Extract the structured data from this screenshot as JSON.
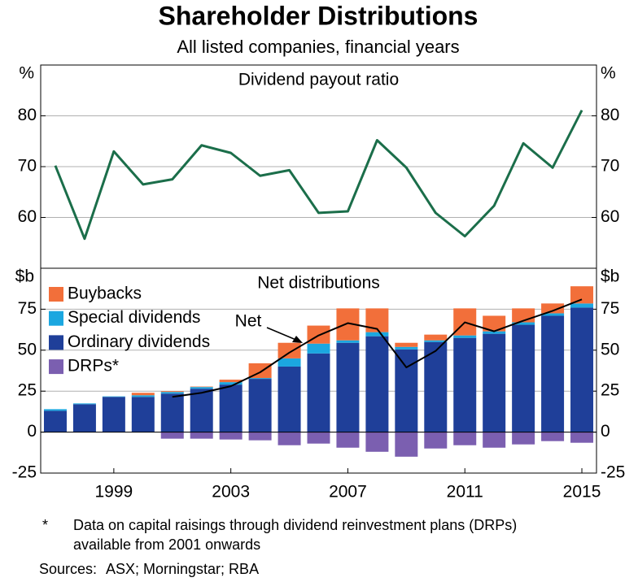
{
  "title": "Shareholder Distributions",
  "subtitle": "All listed companies, financial years",
  "chart_data": [
    {
      "type": "line",
      "title": "Dividend payout ratio",
      "ylabel": "%",
      "x": [
        1997,
        1998,
        1999,
        2000,
        2001,
        2002,
        2003,
        2004,
        2005,
        2006,
        2007,
        2008,
        2009,
        2010,
        2011,
        2012,
        2013,
        2014,
        2015
      ],
      "xlim": [
        1996.5,
        2015.5
      ],
      "ylim": [
        50,
        90
      ],
      "yticks": [
        60,
        70,
        80
      ],
      "mirror_y": true,
      "grid": true,
      "color": "#1b6e4a",
      "values": [
        70.2,
        55.8,
        73,
        66.5,
        67.5,
        74.2,
        72.7,
        68.2,
        69.3,
        60.9,
        61.2,
        75.2,
        69.8,
        60.9,
        56.3,
        62.3,
        74.6,
        69.8,
        81.1
      ]
    },
    {
      "type": "bar",
      "stacked": true,
      "title": "Net distributions",
      "ylabel": "$b",
      "x": [
        1997,
        1998,
        1999,
        2000,
        2001,
        2002,
        2003,
        2004,
        2005,
        2006,
        2007,
        2008,
        2009,
        2010,
        2011,
        2012,
        2013,
        2014,
        2015
      ],
      "xlim": [
        1996.5,
        2015.5
      ],
      "xticks": [
        1999,
        2003,
        2007,
        2011,
        2015
      ],
      "ylim": [
        -25,
        100
      ],
      "yticks": [
        -25,
        0,
        25,
        50,
        75
      ],
      "mirror_y": true,
      "grid": true,
      "legend": "upper left",
      "series": [
        {
          "name": "Buybacks",
          "color": "#f26f3a",
          "values": [
            0,
            0,
            0,
            1.5,
            0.5,
            0.3,
            1.5,
            9,
            9.5,
            11,
            19.5,
            14.5,
            2.5,
            3.5,
            16.5,
            9.5,
            8.5,
            6,
            10.5
          ]
        },
        {
          "name": "Special dividends",
          "color": "#1ba7e0",
          "values": [
            1,
            0.5,
            0.3,
            1,
            1,
            1,
            1.5,
            0.5,
            5,
            6,
            1.5,
            2.5,
            1.5,
            1,
            1.5,
            1.5,
            1.5,
            1.5,
            2.5
          ]
        },
        {
          "name": "Ordinary dividends",
          "color": "#1f3f99",
          "values": [
            13,
            17,
            21.5,
            21.5,
            23.5,
            26.5,
            29,
            32.5,
            40,
            48,
            54.5,
            58.5,
            50.5,
            55,
            57.5,
            60,
            65.5,
            71,
            76
          ]
        },
        {
          "name": "DRPs*",
          "color": "#7b5fb0",
          "values": [
            null,
            null,
            null,
            null,
            -4,
            -4,
            -4.5,
            -5,
            -8,
            -7,
            -9.5,
            -12,
            -15,
            -10,
            -8,
            -9.5,
            -7.5,
            -5.5,
            -6.5
          ]
        },
        {
          "name": "Net",
          "type": "line",
          "color": "#000000",
          "values": [
            null,
            null,
            null,
            null,
            21.5,
            24,
            28,
            36.5,
            48.5,
            59,
            66.5,
            63,
            39.5,
            49.5,
            67,
            61.5,
            68,
            74,
            81
          ]
        }
      ]
    }
  ],
  "footnote": {
    "marker": "*",
    "lines": [
      "Data on capital raisings through dividend reinvestment plans (DRPs)",
      "available from 2001 onwards"
    ]
  },
  "sources": {
    "label": "Sources:",
    "text": "ASX; Morningstar; RBA"
  }
}
